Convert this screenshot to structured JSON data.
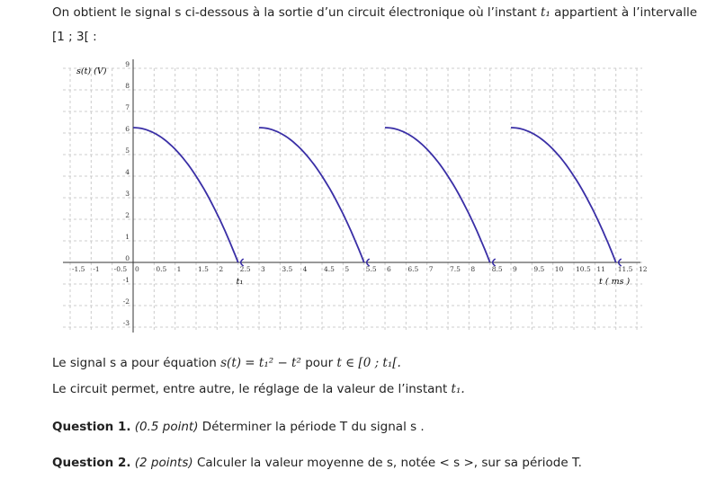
{
  "intro": {
    "line1": "On obtient le signal s ci-dessous à la sortie d’un circuit électronique où l’instant",
    "t1": "t₁",
    "line1b": "appartient à l’intervalle",
    "interval": "[1 ; 3[ :"
  },
  "equation": {
    "pre": "Le signal",
    "s": "s",
    "mid": "a pour équation",
    "formula": "s(t) = t₁² − t²",
    "pour": "pour",
    "domain": "t ∈ [0 ; t₁[."
  },
  "circuit": {
    "text": "Le circuit permet, entre autre, le réglage de la valeur de l’instant",
    "t1": "t₁."
  },
  "q1": {
    "label": "Question 1.",
    "points": "(0.5 point)",
    "text": "Déterminer la période  T du signal  s ."
  },
  "q2": {
    "label": "Question 2.",
    "points": "(2 points)",
    "text": "Calculer la valeur moyenne de s, notée  < s >, sur sa période  T."
  },
  "chart_data": {
    "type": "line",
    "ylabel": "s(t) (V)",
    "xlabel": "t ( ms )",
    "t1_label": "t₁",
    "xlim": [
      -1.5,
      12
    ],
    "ylim": [
      -3,
      9
    ],
    "grid": true,
    "xticks": [
      "-1.5",
      "-1",
      "-0.5",
      "0",
      "0.5",
      "1",
      "1.5",
      "2",
      "2.5",
      "3",
      "3.5",
      "4",
      "4.5",
      "5",
      "5.5",
      "6",
      "6.5",
      "7",
      "7.5",
      "8",
      "8.5",
      "9",
      "9.5",
      "10",
      "10.5",
      "11",
      "11.5",
      "12"
    ],
    "yticks": [
      "-3",
      "-2",
      "-1",
      "0",
      "1",
      "2",
      "3",
      "4",
      "5",
      "6",
      "7",
      "8",
      "9"
    ],
    "t1": 2.5,
    "period": 3,
    "peak": 6.25,
    "segments": [
      {
        "start": 0,
        "end": 2.5
      },
      {
        "start": 3,
        "end": 5.5
      },
      {
        "start": 6,
        "end": 8.5
      },
      {
        "start": 9,
        "end": 11.5
      }
    ],
    "color": "#3a2fa6"
  }
}
